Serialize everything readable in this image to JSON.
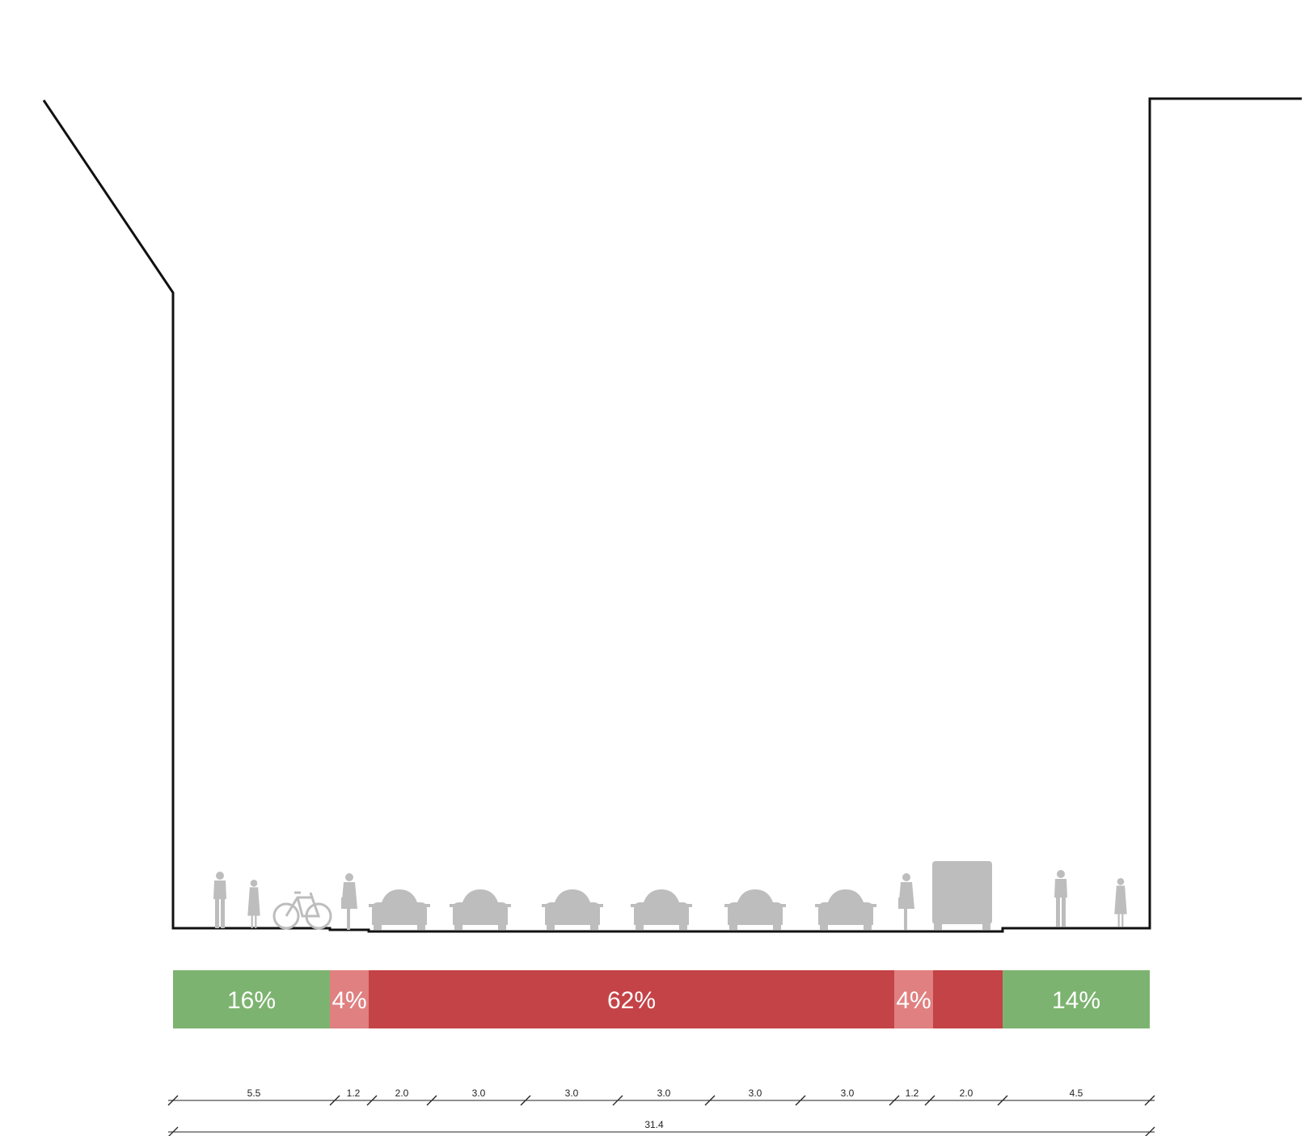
{
  "colors": {
    "ped": "#7db370",
    "bike": "#e08080",
    "car": "#c44347",
    "figure": "#bdbdbd",
    "line": "#111111"
  },
  "bar_segments": [
    {
      "label": "16%",
      "kind": "ped"
    },
    {
      "label": "4%",
      "kind": "bike"
    },
    {
      "label": "62%",
      "kind": "car"
    },
    {
      "label": "4%",
      "kind": "bike"
    },
    {
      "label": "",
      "kind": "car"
    },
    {
      "label": "14%",
      "kind": "ped"
    }
  ],
  "dimensions": [
    "5.5",
    "1.2",
    "2.0",
    "3.0",
    "3.0",
    "3.0",
    "3.0",
    "3.0",
    "1.2",
    "2.0",
    "4.5"
  ],
  "total_dimension": "31.4",
  "icons": [
    "pedestrian-icon",
    "pedestrian-icon",
    "bicycle-icon",
    "cyclist-icon",
    "car-icon",
    "car-icon",
    "car-icon",
    "car-icon",
    "car-icon",
    "car-icon",
    "cyclist-icon",
    "truck-icon",
    "pedestrian-icon",
    "pedestrian-icon"
  ]
}
